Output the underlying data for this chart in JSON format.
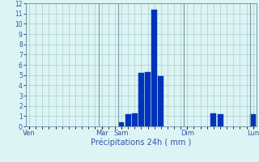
{
  "title": "",
  "xlabel": "Précipitations 24h ( mm )",
  "background_color": "#ddf4f4",
  "bar_color": "#0033bb",
  "grid_color": "#aacccc",
  "tick_label_color": "#3355aa",
  "xlabel_color": "#3355aa",
  "ylim": [
    0,
    12
  ],
  "yticks": [
    0,
    1,
    2,
    3,
    4,
    5,
    6,
    7,
    8,
    9,
    10,
    11,
    12
  ],
  "num_slots": 35,
  "day_labels": [
    {
      "label": "Ven",
      "slot": 0
    },
    {
      "label": "Mar",
      "slot": 11
    },
    {
      "label": "Sam",
      "slot": 14
    },
    {
      "label": "Dim",
      "slot": 24
    },
    {
      "label": "Lun",
      "slot": 34
    }
  ],
  "day_vlines": [
    0,
    11,
    14,
    24,
    34
  ],
  "bars": [
    {
      "slot": 14,
      "value": 0.4
    },
    {
      "slot": 15,
      "value": 1.2
    },
    {
      "slot": 16,
      "value": 1.3
    },
    {
      "slot": 17,
      "value": 5.2
    },
    {
      "slot": 18,
      "value": 5.3
    },
    {
      "slot": 19,
      "value": 11.4
    },
    {
      "slot": 20,
      "value": 4.9
    },
    {
      "slot": 28,
      "value": 1.3
    },
    {
      "slot": 29,
      "value": 1.2
    },
    {
      "slot": 34,
      "value": 1.2
    }
  ]
}
